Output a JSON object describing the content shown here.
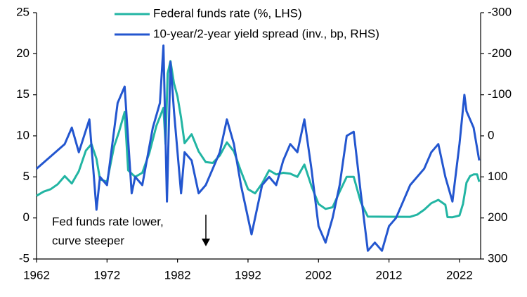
{
  "chart_data": {
    "type": "line",
    "xlim": [
      1962,
      2025
    ],
    "xticks": [
      1962,
      1972,
      1982,
      1992,
      2002,
      2012,
      2022
    ],
    "ylim": [
      -5,
      25
    ],
    "yticks": [
      -5,
      0,
      5,
      10,
      15,
      20,
      25
    ],
    "y2lim": [
      300,
      -300
    ],
    "y2ticks": [
      300,
      200,
      100,
      0,
      -100,
      -200,
      -300
    ],
    "annotation": [
      "Fed funds rate lower,",
      "curve steeper"
    ],
    "series": [
      {
        "name": "Federal funds rate (%, LHS)",
        "color": "#22b5a3",
        "x": [
          1962,
          1963,
          1964,
          1965,
          1966,
          1967,
          1968,
          1969,
          1969.8,
          1970.5,
          1971,
          1972,
          1973,
          1973.7,
          1974.5,
          1975,
          1976,
          1977,
          1978,
          1979,
          1980,
          1980.3,
          1980.6,
          1981,
          1981.5,
          1982,
          1982.5,
          1983,
          1984,
          1985,
          1986,
          1987,
          1988,
          1989,
          1990,
          1991,
          1992,
          1993,
          1994,
          1995,
          1996,
          1997,
          1998,
          1999,
          2000,
          2001,
          2002,
          2003,
          2004,
          2005,
          2006,
          2007,
          2008,
          2009,
          2012,
          2015,
          2016,
          2017,
          2018,
          2019,
          2020,
          2020.3,
          2021,
          2022,
          2022.5,
          2023,
          2023.5,
          2024,
          2024.5,
          2024.8
        ],
        "values": [
          2.7,
          3.2,
          3.5,
          4.1,
          5.1,
          4.2,
          5.7,
          8.2,
          9.0,
          7.2,
          4.7,
          4.4,
          8.7,
          10.5,
          12.9,
          5.8,
          5.0,
          5.5,
          7.9,
          11.2,
          13.4,
          9.0,
          17.6,
          19.1,
          16.4,
          14.8,
          12.2,
          9.1,
          10.2,
          8.1,
          6.8,
          6.7,
          7.6,
          9.2,
          8.1,
          5.7,
          3.5,
          3.0,
          4.2,
          5.8,
          5.3,
          5.5,
          5.4,
          5.0,
          6.5,
          3.9,
          1.7,
          1.1,
          1.3,
          3.2,
          5.0,
          5.0,
          1.9,
          0.16,
          0.14,
          0.13,
          0.4,
          1.0,
          1.8,
          2.2,
          1.6,
          0.1,
          0.08,
          0.3,
          1.7,
          4.3,
          5.1,
          5.3,
          5.3,
          4.4
        ]
      },
      {
        "name": "10-year/2-year yield spread (inv., bp, RHS)",
        "color": "#2356cf",
        "axis": "y2",
        "x": [
          1962,
          1964,
          1966,
          1967,
          1968,
          1969.5,
          1970.5,
          1971,
          1972,
          1973.5,
          1974.5,
          1975.5,
          1976,
          1977,
          1978.5,
          1979.5,
          1980,
          1980.5,
          1981,
          1981.5,
          1982.5,
          1983,
          1984,
          1985,
          1986,
          1987,
          1988,
          1989,
          1990,
          1991,
          1992.5,
          1993,
          1994,
          1995,
          1996,
          1997,
          1998,
          1999,
          2000,
          2001,
          2002,
          2003,
          2004,
          2005,
          2006,
          2007,
          2008,
          2009,
          2010,
          2011,
          2012,
          2013,
          2014,
          2015,
          2016,
          2017,
          2018,
          2019,
          2020,
          2021,
          2022,
          2022.7,
          2023,
          2024,
          2024.8
        ],
        "values": [
          80,
          50,
          20,
          -20,
          40,
          -40,
          180,
          100,
          120,
          -80,
          -120,
          140,
          100,
          120,
          -20,
          -80,
          -220,
          160,
          -180,
          -60,
          140,
          40,
          60,
          140,
          120,
          80,
          40,
          -40,
          20,
          120,
          240,
          200,
          120,
          100,
          120,
          60,
          20,
          40,
          -40,
          80,
          220,
          260,
          200,
          120,
          0,
          -10,
          140,
          280,
          260,
          280,
          220,
          200,
          160,
          120,
          100,
          80,
          40,
          20,
          100,
          160,
          20,
          -100,
          -60,
          -20,
          60
        ]
      }
    ]
  }
}
